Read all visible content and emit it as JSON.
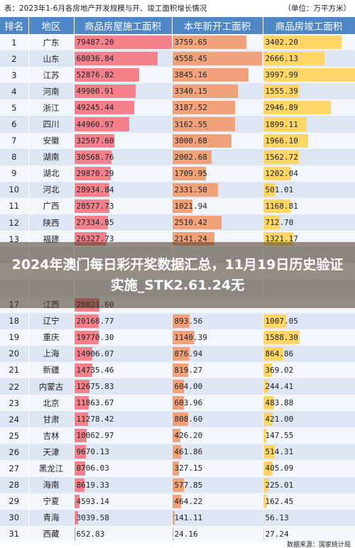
{
  "caption": {
    "left": "表：2023年1-6月各房地产开发规模与开、竣工面积增长情况",
    "right": "（单位：万平方米）"
  },
  "headers": {
    "rank": "排名",
    "province": "地区",
    "construction": "商品房屋施工面积",
    "new_start": "本年新开工面积",
    "completed": "商品房竣工面积"
  },
  "colors": {
    "header_bg": "#4f86c6",
    "bar_construction": "#f4808c",
    "bar_new_start": "#f2a27a",
    "bar_completed": "#ffd666"
  },
  "rows": [
    {
      "rank": "1",
      "province": "广东",
      "construction": "79487.20",
      "new_start": "3759.65",
      "completed": "3402.20"
    },
    {
      "rank": "2",
      "province": "山东",
      "construction": "68036.84",
      "new_start": "4558.45",
      "completed": "2666.13"
    },
    {
      "rank": "3",
      "province": "江苏",
      "construction": "52876.82",
      "new_start": "3845.16",
      "completed": "3997.99"
    },
    {
      "rank": "4",
      "province": "河南",
      "construction": "49900.91",
      "new_start": "3340.15",
      "completed": "1555.39"
    },
    {
      "rank": "5",
      "province": "浙江",
      "construction": "49245.44",
      "new_start": "3187.52",
      "completed": "2946.89"
    },
    {
      "rank": "6",
      "province": "四川",
      "construction": "44960.97",
      "new_start": "3162.55",
      "completed": "1899.11"
    },
    {
      "rank": "7",
      "province": "安徽",
      "construction": "32597.60",
      "new_start": "3000.68",
      "completed": "1966.10"
    },
    {
      "rank": "8",
      "province": "湖南",
      "construction": "30568.76",
      "new_start": "2002.68",
      "completed": "1562.72"
    },
    {
      "rank": "9",
      "province": "湖北",
      "construction": "29870.29",
      "new_start": "1709.95",
      "completed": "1202.04"
    },
    {
      "rank": "10",
      "province": "河北",
      "construction": "28934.84",
      "new_start": "2331.50",
      "completed": "501.01"
    },
    {
      "rank": "11",
      "province": "广西",
      "construction": "28577.73",
      "new_start": "1021.94",
      "completed": "1168.81"
    },
    {
      "rank": "12",
      "province": "陕西",
      "construction": "27334.85",
      "new_start": "2510.42",
      "completed": "712.70"
    },
    {
      "rank": "13",
      "province": "福建",
      "construction": "26327.73",
      "new_start": "2141.24",
      "completed": "1321.17"
    },
    {
      "rank": "",
      "province": "",
      "construction": "",
      "new_start": "",
      "completed": ""
    },
    {
      "rank": "",
      "province": "",
      "construction": "",
      "new_start": "",
      "completed": ""
    },
    {
      "rank": "",
      "province": "",
      "construction": "",
      "new_start": "",
      "completed": ""
    },
    {
      "rank": "17",
      "province": "江西",
      "construction": "20821.60",
      "new_start": "",
      "completed": ""
    },
    {
      "rank": "18",
      "province": "辽宁",
      "construction": "20168.77",
      "new_start": "893.56",
      "completed": "1007.05"
    },
    {
      "rank": "19",
      "province": "重庆",
      "construction": "19770.30",
      "new_start": "1140.39",
      "completed": "1588.30"
    },
    {
      "rank": "20",
      "province": "上海",
      "construction": "14906.07",
      "new_start": "876.94",
      "completed": "864.86"
    },
    {
      "rank": "21",
      "province": "新疆",
      "construction": "14735.46",
      "new_start": "819.27",
      "completed": "369.02"
    },
    {
      "rank": "22",
      "province": "内蒙古",
      "construction": "12675.83",
      "new_start": "604.00",
      "completed": "244.41"
    },
    {
      "rank": "23",
      "province": "北京",
      "construction": "11863.67",
      "new_start": "603.96",
      "completed": "483.88"
    },
    {
      "rank": "24",
      "province": "甘肃",
      "construction": "11278.42",
      "new_start": "808.60",
      "completed": "421.00"
    },
    {
      "rank": "25",
      "province": "吉林",
      "construction": "10062.97",
      "new_start": "426.20",
      "completed": "147.55"
    },
    {
      "rank": "26",
      "province": "天津",
      "construction": "9670.13",
      "new_start": "461.86",
      "completed": "514.31"
    },
    {
      "rank": "27",
      "province": "黑龙江",
      "construction": "8706.03",
      "new_start": "327.15",
      "completed": "405.09"
    },
    {
      "rank": "28",
      "province": "海南",
      "construction": "8619.33",
      "new_start": "577.85",
      "completed": "225.01"
    },
    {
      "rank": "29",
      "province": "宁夏",
      "construction": "4593.14",
      "new_start": "464.22",
      "completed": "162.45"
    },
    {
      "rank": "30",
      "province": "青海",
      "construction": "3039.58",
      "new_start": "141.11",
      "completed": "56.13"
    },
    {
      "rank": "31",
      "province": "西藏",
      "construction": "652.83",
      "new_start": "24.16",
      "completed": "27.24"
    }
  ],
  "scales": {
    "construction_max": 80000,
    "new_start_max": 4600,
    "completed_max": 4000
  },
  "source": "数据来源：国家统计局",
  "overlay_title": "2024年澳门每日彩开奖数据汇总，11月19日历史验证实施_STK2.61.24无"
}
